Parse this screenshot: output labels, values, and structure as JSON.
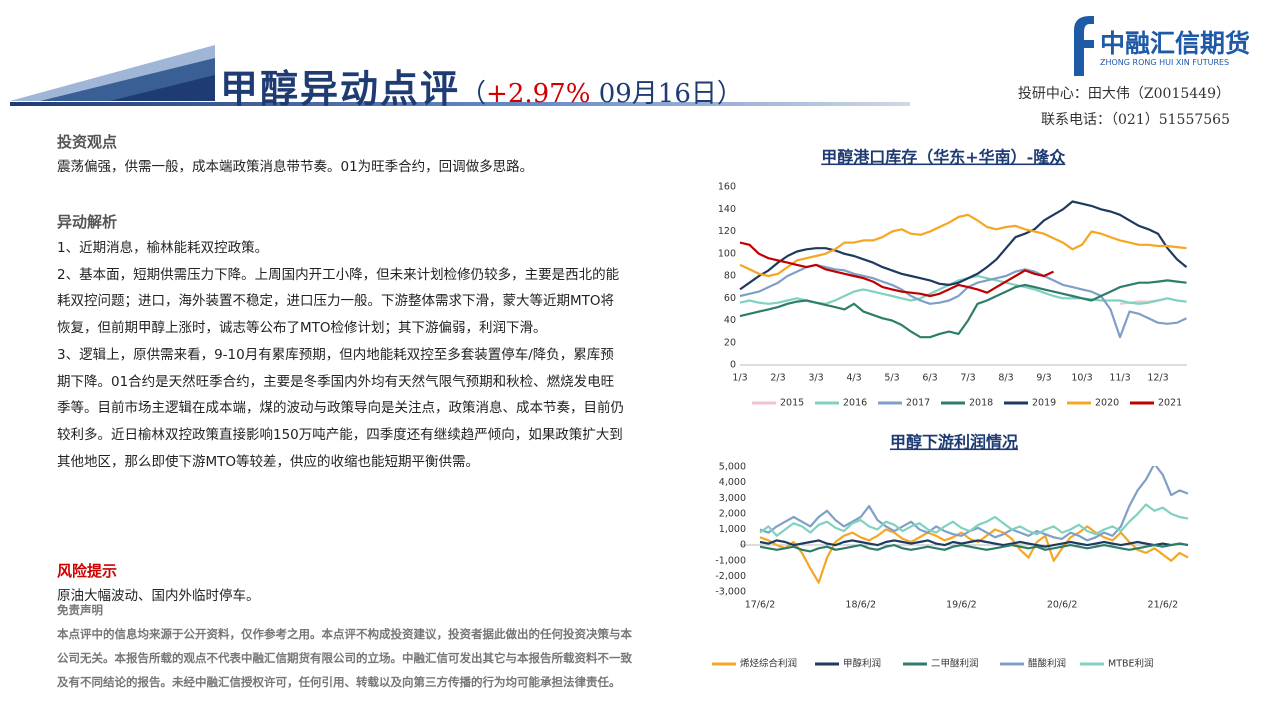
{
  "header": {
    "title": "甲醇异动点评",
    "open": "（",
    "change": "+2.97%",
    "date": "09月16日",
    "close": "）"
  },
  "logo": {
    "name": "中融汇信期货",
    "english": "ZHONG RONG HUI XIN FUTURES"
  },
  "contact": {
    "analyst": "投研中心：田大伟（Z0015449）",
    "phone": "联系电话：（021）51557565"
  },
  "viewpoint": {
    "heading": "投资观点",
    "text": "震荡偏强，供需一般，成本端政策消息带节奏。01为旺季合约，回调做多思路。"
  },
  "analysis": {
    "heading": "异动解析",
    "items": [
      "1、近期消息，榆林能耗双控政策。",
      "2、基本面，短期供需压力下降。上周国内开工小降，但未来计划检修仍较多，主要是西北的能耗双控问题；进口，海外装置不稳定，进口压力一般。下游整体需求下滑，蒙大等近期MTO将恢复，但前期甲醇上涨时，诚志等公布了MTO检修计划；其下游偏弱，利润下滑。",
      "3、逻辑上，原供需来看，9-10月有累库预期，但内地能耗双控至多套装置停车/降负，累库预期下降。01合约是天然旺季合约，主要是冬季国内外均有天然气限气预期和秋检、燃烧发电旺季等。目前市场主逻辑在成本端，煤的波动与政策导向是关注点，政策消息、成本节奏，目前仍较利多。近日榆林双控政策直接影响150万吨产能，四季度还有继续趋严倾向，如果政策扩大到其他地区，那么即使下游MTO等较差，供应的收缩也能短期平衡供需。"
    ]
  },
  "risk": {
    "heading": "风险提示",
    "text": "原油大幅波动、国内外临时停车。"
  },
  "disclaimer": {
    "heading": "免责声明",
    "text": "本点评中的信息均来源于公开资料，仅作参考之用。本点评不构成投资建议，投资者据此做出的任何投资决策与本公司无关。本报告所载的观点不代表中融汇信期货有限公司的立场。中融汇信可发出其它与本报告所载资料不一致及有不同结论的报告。未经中融汇信授权许可，任何引用、转载以及向第三方传播的行为均可能承担法律责任。"
  },
  "chart_data": [
    {
      "type": "line",
      "title": "甲醇港口库存（华东+华南）-隆众",
      "categories": [
        "1/3",
        null,
        null,
        null,
        "2/3",
        null,
        null,
        null,
        "3/3",
        null,
        null,
        null,
        "4/3",
        null,
        null,
        null,
        "5/3",
        null,
        null,
        null,
        "6/3",
        null,
        null,
        null,
        "7/3",
        null,
        null,
        null,
        "8/3",
        null,
        null,
        null,
        "9/3",
        null,
        null,
        null,
        "10/3",
        null,
        null,
        null,
        "11/3",
        null,
        null,
        null,
        "12/3",
        null,
        null,
        null
      ],
      "ylim": [
        0,
        160
      ],
      "yticks": [
        0,
        20,
        40,
        60,
        80,
        100,
        120,
        140,
        160
      ],
      "grid": false,
      "legend": "bottom",
      "series": [
        {
          "name": "2015",
          "color": "#f2c4d0",
          "values": [
            null,
            null,
            null,
            null,
            null,
            null,
            null,
            null,
            null,
            null,
            null,
            null,
            null,
            null,
            null,
            null,
            null,
            null,
            null,
            null,
            null,
            null,
            null,
            null,
            null,
            null,
            null,
            null,
            null,
            null,
            null,
            null,
            null,
            null,
            null,
            null,
            null,
            null,
            null,
            null,
            55,
            56,
            57,
            57,
            58,
            null,
            null,
            null
          ]
        },
        {
          "name": "2016",
          "color": "#7fd1c0",
          "values": [
            56,
            58,
            56,
            55,
            56,
            58,
            60,
            58,
            56,
            55,
            58,
            62,
            66,
            68,
            66,
            64,
            62,
            60,
            58,
            60,
            64,
            68,
            72,
            76,
            78,
            80,
            78,
            76,
            74,
            72,
            70,
            68,
            65,
            62,
            60,
            60,
            60,
            59,
            58,
            58,
            58,
            56,
            55,
            56,
            58,
            60,
            58,
            57
          ]
        },
        {
          "name": "2017",
          "color": "#7f9fc8",
          "values": [
            62,
            64,
            66,
            70,
            74,
            80,
            84,
            88,
            90,
            88,
            86,
            85,
            82,
            80,
            78,
            75,
            72,
            68,
            62,
            58,
            55,
            56,
            58,
            62,
            70,
            74,
            76,
            78,
            80,
            84,
            86,
            84,
            80,
            76,
            72,
            70,
            68,
            66,
            62,
            50,
            25,
            48,
            46,
            42,
            38,
            37,
            38,
            42
          ]
        },
        {
          "name": "2018",
          "color": "#2e7d6a",
          "values": [
            44,
            46,
            48,
            50,
            52,
            55,
            57,
            58,
            56,
            54,
            52,
            50,
            55,
            48,
            45,
            42,
            40,
            36,
            30,
            25,
            25,
            28,
            30,
            28,
            40,
            55,
            58,
            62,
            66,
            70,
            72,
            70,
            68,
            66,
            64,
            62,
            60,
            58,
            62,
            66,
            70,
            72,
            74,
            74,
            75,
            76,
            75,
            74
          ]
        },
        {
          "name": "2019",
          "color": "#1f3a5f",
          "values": [
            68,
            74,
            80,
            85,
            92,
            98,
            102,
            104,
            105,
            105,
            103,
            100,
            98,
            95,
            92,
            88,
            85,
            82,
            80,
            78,
            76,
            73,
            72,
            74,
            78,
            82,
            88,
            95,
            105,
            115,
            118,
            122,
            130,
            135,
            140,
            147,
            145,
            143,
            140,
            138,
            135,
            130,
            125,
            122,
            118,
            105,
            95,
            88
          ]
        },
        {
          "name": "2020",
          "color": "#f5a623",
          "values": [
            90,
            86,
            82,
            80,
            82,
            88,
            94,
            96,
            98,
            100,
            104,
            110,
            110,
            112,
            112,
            115,
            120,
            122,
            118,
            117,
            120,
            124,
            128,
            133,
            135,
            130,
            124,
            122,
            124,
            125,
            122,
            120,
            118,
            114,
            110,
            104,
            108,
            120,
            118,
            115,
            112,
            110,
            108,
            108,
            107,
            107,
            106,
            105
          ]
        },
        {
          "name": "2021",
          "color": "#c00000",
          "values": [
            110,
            108,
            100,
            96,
            94,
            92,
            90,
            88,
            90,
            86,
            84,
            82,
            80,
            78,
            75,
            70,
            68,
            66,
            65,
            64,
            62,
            64,
            68,
            72,
            70,
            68,
            65,
            70,
            75,
            80,
            85,
            82,
            80,
            84,
            null,
            null,
            null,
            null,
            null,
            null,
            null,
            null,
            null,
            null,
            null,
            null,
            null,
            null
          ]
        }
      ]
    },
    {
      "type": "line",
      "title": "甲醇下游利润情况",
      "categories": [
        "17/6/2",
        null,
        null,
        null,
        null,
        null,
        null,
        null,
        null,
        null,
        null,
        null,
        "18/6/2",
        null,
        null,
        null,
        null,
        null,
        null,
        null,
        null,
        null,
        null,
        null,
        "19/6/2",
        null,
        null,
        null,
        null,
        null,
        null,
        null,
        null,
        null,
        null,
        null,
        "20/6/2",
        null,
        null,
        null,
        null,
        null,
        null,
        null,
        null,
        null,
        null,
        null,
        "21/6/2",
        null,
        null,
        null
      ],
      "ylim": [
        -3000,
        5000
      ],
      "yticks": [
        {
          "value": 5000,
          "label": "5,000"
        },
        {
          "value": 4000,
          "label": "4,000"
        },
        {
          "value": 3000,
          "label": "3,000"
        },
        {
          "value": 2000,
          "label": "2,000"
        },
        {
          "value": 1000,
          "label": "1,000"
        },
        0,
        {
          "value": -1000,
          "label": "-1,000"
        },
        {
          "value": -2000,
          "label": "-2,000"
        },
        {
          "value": -3000,
          "label": "-3,000"
        }
      ],
      "grid": false,
      "legend": "bottom",
      "series": [
        {
          "name": "烯烃综合利润",
          "color": "#f5a623",
          "values": [
            500,
            300,
            0,
            -200,
            200,
            -500,
            -1500,
            -2400,
            -800,
            200,
            600,
            800,
            500,
            300,
            600,
            1000,
            800,
            400,
            200,
            500,
            800,
            600,
            300,
            500,
            800,
            400,
            200,
            600,
            1000,
            800,
            400,
            -300,
            -800,
            200,
            600,
            -1000,
            -200,
            500,
            800,
            1200,
            800,
            500,
            300,
            800,
            200,
            -300,
            -500,
            -200,
            -600,
            -1000,
            -500,
            -800
          ]
        },
        {
          "name": "甲醇利润",
          "color": "#1f3a5f",
          "values": [
            200,
            100,
            300,
            200,
            0,
            100,
            200,
            300,
            100,
            0,
            200,
            300,
            200,
            100,
            0,
            200,
            300,
            200,
            100,
            200,
            300,
            100,
            0,
            200,
            100,
            200,
            300,
            200,
            100,
            0,
            100,
            200,
            100,
            0,
            -100,
            0,
            100,
            200,
            100,
            0,
            100,
            200,
            100,
            0,
            100,
            200,
            100,
            0,
            100,
            0,
            100,
            0
          ]
        },
        {
          "name": "二甲醚利润",
          "color": "#2e7d6a",
          "values": [
            -100,
            -200,
            -300,
            -200,
            -100,
            -300,
            -400,
            -200,
            -100,
            -300,
            -200,
            -100,
            0,
            -200,
            -300,
            -100,
            0,
            -200,
            -300,
            -200,
            -100,
            -200,
            -300,
            -100,
            0,
            -100,
            -200,
            -300,
            -200,
            -100,
            0,
            -100,
            -200,
            -100,
            -300,
            -200,
            -100,
            0,
            -100,
            -200,
            -100,
            0,
            -100,
            -200,
            -300,
            -200,
            -100,
            0,
            -100,
            0,
            100,
            0
          ]
        },
        {
          "name": "醋酸利润",
          "color": "#7f9fc8",
          "values": [
            1000,
            800,
            1200,
            1500,
            1800,
            1500,
            1200,
            1800,
            2200,
            1600,
            1200,
            1500,
            1800,
            2500,
            1600,
            1200,
            900,
            1200,
            1500,
            1000,
            800,
            1200,
            900,
            700,
            600,
            900,
            1100,
            800,
            500,
            700,
            1000,
            800,
            600,
            900,
            700,
            500,
            400,
            800,
            600,
            300,
            500,
            800,
            600,
            1200,
            2500,
            3500,
            4200,
            5200,
            4500,
            3200,
            3500,
            3300
          ]
        },
        {
          "name": "MTBE利润",
          "color": "#7fd1c0",
          "values": [
            800,
            1200,
            600,
            1000,
            1400,
            1200,
            800,
            1300,
            1500,
            1100,
            900,
            1400,
            1600,
            1200,
            1000,
            1500,
            1300,
            900,
            1200,
            1400,
            1000,
            800,
            1200,
            1500,
            1100,
            900,
            1300,
            1500,
            1800,
            1400,
            1000,
            1200,
            900,
            700,
            1000,
            1200,
            800,
            1000,
            1300,
            900,
            700,
            1000,
            1200,
            900,
            1500,
            2000,
            2600,
            2200,
            2400,
            2000,
            1800,
            1700
          ]
        }
      ]
    }
  ]
}
